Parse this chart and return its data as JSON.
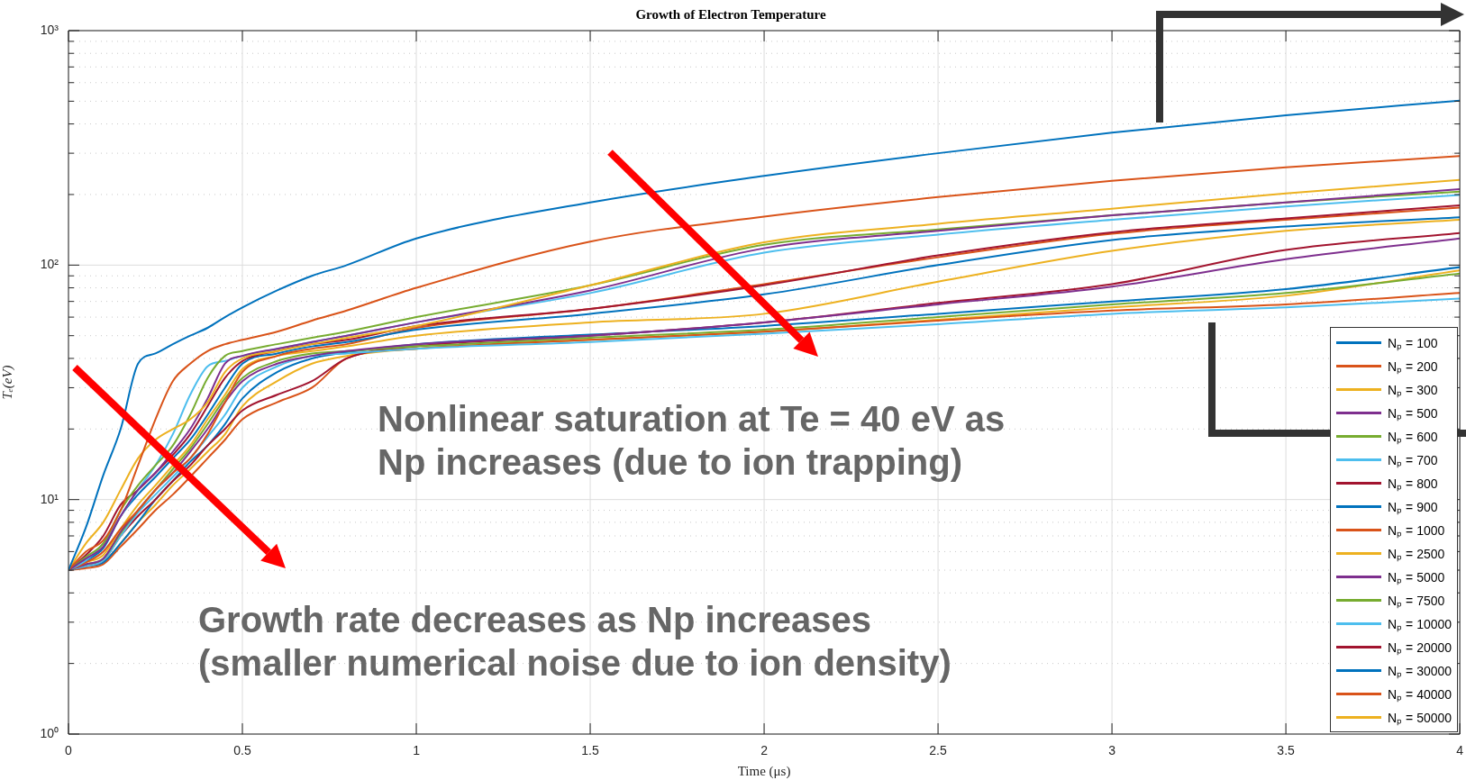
{
  "chart_data": {
    "type": "line",
    "title": "Growth of Electron Temperature",
    "xlabel": "Time (μs)",
    "ylabel": "Tₑ(eV)",
    "x": [
      0,
      0.05,
      0.1,
      0.15,
      0.2,
      0.25,
      0.3,
      0.35,
      0.4,
      0.45,
      0.5,
      0.6,
      0.7,
      0.8,
      1,
      1.5,
      2,
      2.5,
      3,
      3.5,
      4
    ],
    "series": [
      {
        "name": "Nₚ = 100",
        "color": "#0072bd",
        "values": [
          5,
          7.6,
          12.7,
          20,
          38,
          42,
          46,
          50,
          54,
          60,
          66,
          78,
          90,
          100,
          130,
          185,
          240,
          300,
          367,
          435,
          503
        ]
      },
      {
        "name": "Nₚ = 200",
        "color": "#d95319",
        "values": [
          5,
          6,
          6.7,
          9,
          14,
          22,
          32,
          38,
          43,
          46,
          48,
          52,
          58,
          64,
          80,
          126,
          161,
          195,
          229,
          261,
          292
        ]
      },
      {
        "name": "Nₚ = 300",
        "color": "#edb120",
        "values": [
          5,
          6.5,
          8,
          11,
          15,
          18,
          20,
          22,
          26,
          35,
          40,
          43,
          46,
          49,
          55,
          82,
          125,
          150,
          174,
          202,
          231
        ]
      },
      {
        "name": "Nₚ = 500",
        "color": "#7e2f8e",
        "values": [
          5,
          5.6,
          6.3,
          8.5,
          11,
          13,
          16,
          20,
          27,
          38,
          41,
          44,
          47,
          50,
          57,
          78,
          118,
          140,
          163,
          185,
          211
        ]
      },
      {
        "name": "Nₚ = 600",
        "color": "#77ac30",
        "values": [
          5,
          5.7,
          6.5,
          9,
          11.5,
          14,
          17,
          23,
          33,
          41,
          43,
          46,
          49,
          52,
          60,
          82,
          122,
          142,
          163,
          185,
          206
        ]
      },
      {
        "name": "Nₚ = 700",
        "color": "#4dbeee",
        "values": [
          5,
          5.5,
          6.5,
          8.5,
          11,
          14,
          19,
          28,
          37,
          39,
          41,
          44,
          47,
          50,
          57,
          76,
          113,
          135,
          156,
          178,
          199
        ]
      },
      {
        "name": "Nₚ = 800",
        "color": "#a2142f",
        "values": [
          5,
          5.8,
          7,
          9.5,
          11,
          13,
          15.5,
          19,
          25,
          33,
          39,
          43,
          46,
          48,
          55,
          65,
          82,
          110,
          138,
          158,
          180
        ]
      },
      {
        "name": "Nₚ = 900",
        "color": "#0072bd",
        "values": [
          5,
          5.5,
          6.2,
          8.5,
          10.5,
          12.5,
          15,
          18,
          23,
          30,
          38,
          42,
          45,
          47,
          53,
          62,
          75,
          100,
          128,
          146,
          160
        ]
      },
      {
        "name": "Nₚ = 1000",
        "color": "#d95319",
        "values": [
          5,
          5.4,
          6,
          7.5,
          9,
          11,
          13,
          15,
          19,
          26,
          35,
          41,
          44,
          46,
          54,
          65,
          83,
          108,
          136,
          156,
          176
        ]
      },
      {
        "name": "Nₚ = 2500",
        "color": "#edb120",
        "values": [
          5,
          5.4,
          5.8,
          7.5,
          9.5,
          11.5,
          14,
          17,
          22,
          28,
          36,
          41,
          43,
          45,
          50,
          57,
          62,
          85,
          115,
          140,
          156
        ]
      },
      {
        "name": "Nₚ = 5000",
        "color": "#7e2f8e",
        "values": [
          5,
          5.3,
          5.6,
          7.3,
          9,
          11,
          13,
          16,
          20,
          26,
          32,
          38,
          41,
          43,
          46,
          50,
          57,
          68,
          81,
          106,
          130
        ]
      },
      {
        "name": "Nₚ = 7500",
        "color": "#77ac30",
        "values": [
          5,
          5.3,
          5.6,
          7.2,
          9,
          11,
          13.5,
          16.5,
          21,
          27,
          33,
          39,
          42,
          43,
          45,
          49,
          53,
          60,
          68,
          76,
          92
        ]
      },
      {
        "name": "Nₚ = 10000",
        "color": "#4dbeee",
        "values": [
          5,
          5.2,
          5.5,
          7,
          8.8,
          10.5,
          12.5,
          15,
          18.5,
          23,
          30,
          37,
          41,
          42,
          44,
          47,
          51,
          56,
          62,
          66,
          72
        ]
      },
      {
        "name": "Nₚ = 20000",
        "color": "#a2142f",
        "values": [
          5,
          5.2,
          5.5,
          7,
          8.5,
          10,
          12,
          14,
          17,
          20,
          24,
          28,
          32,
          40,
          45,
          50,
          57,
          69,
          83,
          116,
          137
        ]
      },
      {
        "name": "Nₚ = 30000",
        "color": "#0072bd",
        "values": [
          5,
          5.2,
          5.4,
          6.5,
          8,
          10,
          12,
          14.5,
          17,
          21,
          27,
          35,
          40,
          42.5,
          46,
          50.5,
          55,
          62,
          70,
          79,
          98
        ]
      },
      {
        "name": "Nₚ = 40000",
        "color": "#d95319",
        "values": [
          5,
          5.1,
          5.3,
          6.3,
          7.5,
          9,
          10.5,
          12.5,
          15,
          18,
          22,
          26,
          30,
          40,
          44,
          48,
          52,
          58,
          64,
          68,
          76
        ]
      },
      {
        "name": "Nₚ = 50000",
        "color": "#edb120",
        "values": [
          5,
          5.2,
          5.4,
          6.5,
          8,
          9.5,
          11.5,
          13.5,
          16,
          19,
          25,
          32,
          38,
          41,
          44,
          48,
          52,
          58.5,
          66,
          74,
          95
        ]
      }
    ],
    "xlim": [
      0,
      4
    ],
    "xticks": [
      0,
      0.5,
      1,
      1.5,
      2,
      2.5,
      3,
      3.5,
      4
    ],
    "ylim": [
      1,
      1000
    ],
    "yticks": [
      {
        "value": 1,
        "label": "10⁰"
      },
      {
        "value": 2,
        "label": null
      },
      {
        "value": 3,
        "label": null
      },
      {
        "value": 4,
        "label": null
      },
      {
        "value": 5,
        "label": null
      },
      {
        "value": 6,
        "label": null
      },
      {
        "value": 7,
        "label": null
      },
      {
        "value": 8,
        "label": null
      },
      {
        "value": 9,
        "label": null
      },
      {
        "value": 10,
        "label": "10¹"
      },
      {
        "value": 20,
        "label": null
      },
      {
        "value": 30,
        "label": null
      },
      {
        "value": 40,
        "label": null
      },
      {
        "value": 50,
        "label": null
      },
      {
        "value": 60,
        "label": null
      },
      {
        "value": 70,
        "label": null
      },
      {
        "value": 80,
        "label": null
      },
      {
        "value": 90,
        "label": null
      },
      {
        "value": 100,
        "label": "10²"
      },
      {
        "value": 200,
        "label": null
      },
      {
        "value": 300,
        "label": null
      },
      {
        "value": 400,
        "label": null
      },
      {
        "value": 500,
        "label": null
      },
      {
        "value": 600,
        "label": null
      },
      {
        "value": 700,
        "label": null
      },
      {
        "value": 800,
        "label": null
      },
      {
        "value": 900,
        "label": null
      },
      {
        "value": 1000,
        "label": "10³"
      }
    ],
    "log": true,
    "grid": true,
    "legend": "bottom right",
    "annotations": [
      "Nonlinear saturation at Te = 40 eV as\nNp increases (due to ion trapping)",
      "Growth rate decreases as Np increases\n(smaller numerical noise due to ion density)"
    ]
  }
}
